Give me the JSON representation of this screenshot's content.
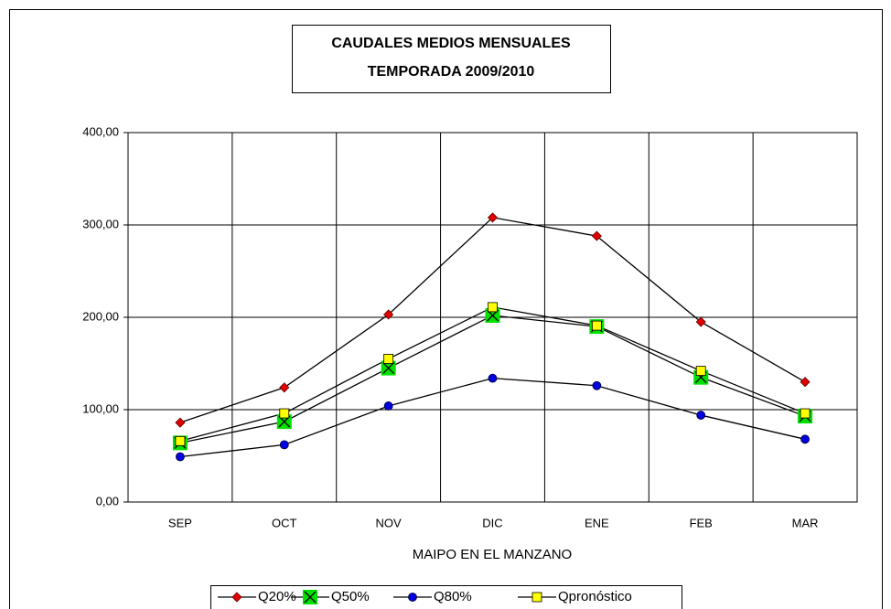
{
  "chart_data": {
    "type": "line",
    "title": "CAUDALES MEDIOS MENSUALES",
    "subtitle": "TEMPORADA 2009/2010",
    "x_label": "MAIPO EN EL MANZANO",
    "categories": [
      "SEP",
      "OCT",
      "NOV",
      "DIC",
      "ENE",
      "FEB",
      "MAR"
    ],
    "series": [
      {
        "name": "Q20%",
        "color": "#e00000",
        "marker": "diamond",
        "values": [
          86,
          124,
          203,
          308,
          288,
          195,
          130
        ]
      },
      {
        "name": "Q50%",
        "color": "#00e000",
        "marker": "x-square",
        "values": [
          64,
          87,
          145,
          202,
          190,
          135,
          93
        ]
      },
      {
        "name": "Q80%",
        "color": "#0000e0",
        "marker": "circle",
        "values": [
          49,
          62,
          104,
          134,
          126,
          94,
          68
        ]
      },
      {
        "name": "Qpronóstico",
        "color": "#ffff00",
        "marker": "square",
        "values": [
          66,
          96,
          155,
          211,
          191,
          142,
          96
        ]
      }
    ],
    "ylim": [
      0,
      400
    ],
    "yticks": [
      {
        "value": 0,
        "label": "0,00"
      },
      {
        "value": 100,
        "label": "100,00"
      },
      {
        "value": 200,
        "label": "200,00"
      },
      {
        "value": 300,
        "label": "300,00"
      },
      {
        "value": 400,
        "label": "400,00"
      }
    ],
    "grid": true,
    "legend": "bottom"
  }
}
